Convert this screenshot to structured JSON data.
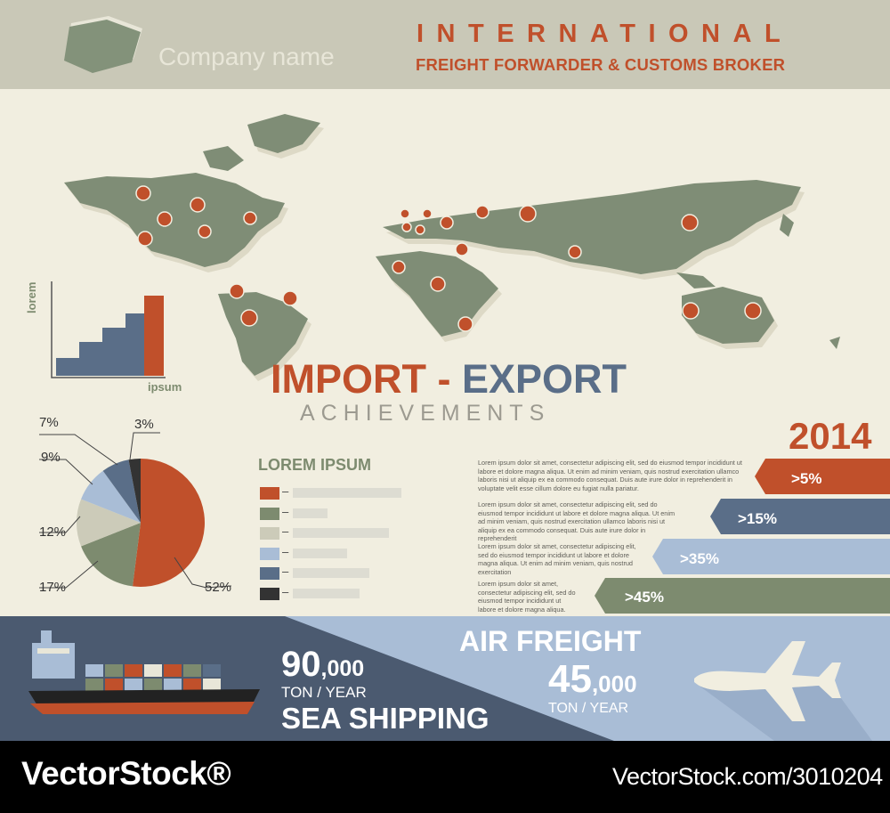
{
  "header": {
    "company": "Company name",
    "title": "INTERNATIONAL",
    "subtitle": "FREIGHT FORWARDER & CUSTOMS BROKER"
  },
  "colors": {
    "rust": "#c0502b",
    "slate": "#5a6e88",
    "olive": "#7d8b6f",
    "light_blue": "#a9bdd6",
    "beige": "#c9c8b7",
    "background": "#f1eee0"
  },
  "bar_chart": {
    "ylabel": "lorem",
    "xlabel": "ipsum"
  },
  "headline": {
    "import": "IMPORT",
    "dash": " - ",
    "export": "EXPORT",
    "achievements": "ACHIEVEMENTS"
  },
  "chart_data": {
    "type": "pie",
    "slices": [
      {
        "label": "52%",
        "value": 52,
        "color": "#c0502b"
      },
      {
        "label": "17%",
        "value": 17,
        "color": "#7d8b6f"
      },
      {
        "label": "12%",
        "value": 12,
        "color": "#cccbb9"
      },
      {
        "label": "9%",
        "value": 9,
        "color": "#a9bdd6"
      },
      {
        "label": "7%",
        "value": 7,
        "color": "#5a6e88"
      },
      {
        "label": "3%",
        "value": 3,
        "color": "#333333"
      }
    ]
  },
  "legend": {
    "title": "LOREM IPSUM",
    "dash": "–",
    "items": [
      {
        "color": "#c0502b",
        "level": 0.94
      },
      {
        "color": "#7d8b6f",
        "level": 0.3
      },
      {
        "color": "#cccbb9",
        "level": 0.83
      },
      {
        "color": "#a9bdd6",
        "level": 0.47
      },
      {
        "color": "#5a6e88",
        "level": 0.66
      },
      {
        "color": "#333333",
        "level": 0.58
      }
    ]
  },
  "paragraphs": [
    "Lorem ipsum dolor sit amet, consectetur adipiscing elit, sed do eiusmod tempor incididunt ut labore et dolore magna aliqua. Ut enim ad minim veniam, quis nostrud exercitation ullamco laboris nisi ut aliquip ex ea commodo consequat. Duis aute irure dolor in reprehenderit in voluptate velit esse cillum dolore eu fugiat nulla pariatur.",
    "Lorem ipsum dolor sit amet, consectetur adipiscing elit, sed do eiusmod tempor incididunt ut labore et dolore magna aliqua. Ut enim ad minim veniam, quis nostrud exercitation ullamco laboris nisi ut aliquip ex ea commodo consequat. Duis aute irure dolor in reprehenderit",
    "Lorem ipsum dolor sit amet, consectetur adipiscing elit, sed do eiusmod tempor incididunt ut labore et dolore magna aliqua. Ut enim ad minim veniam, quis nostrud exercitation",
    "Lorem ipsum dolor sit amet, consectetur adipiscing elit, sed do eiusmod tempor incididunt ut labore et dolore magna aliqua."
  ],
  "year_block": {
    "year": "2014",
    "arrows": [
      {
        "label": ">5%",
        "color": "#c0502b"
      },
      {
        "label": ">15%",
        "color": "#5a6e88"
      },
      {
        "label": ">35%",
        "color": "#a9bdd6"
      },
      {
        "label": ">45%",
        "color": "#7d8b6f"
      }
    ]
  },
  "sea": {
    "number": "90",
    "suffix": ",000",
    "unit": "TON / YEAR",
    "label": "SEA SHIPPING"
  },
  "air": {
    "label": "AIR FREIGHT",
    "number": "45",
    "suffix": ",000",
    "unit": "TON / YEAR"
  },
  "watermark": {
    "brand": "VectorStock®",
    "url": "VectorStock.com/3010204"
  }
}
